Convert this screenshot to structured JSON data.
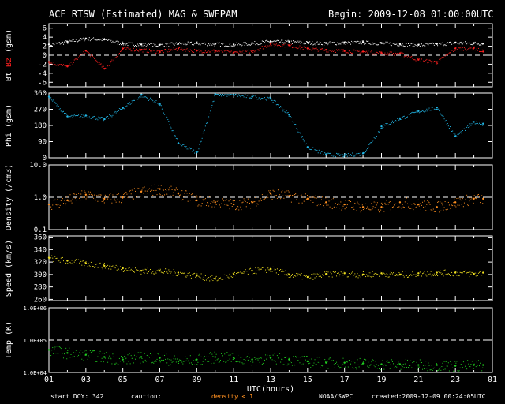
{
  "header": {
    "title": "ACE RTSW (Estimated) MAG & SWEPAM",
    "begin": "Begin: 2009-12-08 01:00:00UTC"
  },
  "footer": {
    "start_doy": "start DOY: 342",
    "caution_label": "caution:",
    "caution_value": "density < 1",
    "source": "NOAA/SWPC",
    "created": "created:2009-12-09 00:24:05UTC"
  },
  "colors": {
    "bt": "#ffffff",
    "bz": "#ff2020",
    "phi": "#22b8e8",
    "density": "#ff9020",
    "speed": "#f0e020",
    "temp": "#20d020",
    "caution": "#ff9020",
    "frame": "#ffffff",
    "background": "#000000"
  },
  "chart_data": [
    {
      "type": "line",
      "ylabel_parts": [
        {
          "text": "Bt",
          "color": "#ffffff"
        },
        {
          "text": "Bz",
          "color": "#ff2020"
        },
        {
          "text": "(gsm)",
          "color": "#ffffff"
        }
      ],
      "ylim": [
        -7,
        7
      ],
      "yticks": [
        6,
        4,
        2,
        0,
        -2,
        -4,
        -6
      ],
      "yticklabels": [
        "6",
        "4",
        "2",
        "0",
        "-2",
        "-4",
        "-6"
      ],
      "refline": 0,
      "x_hours": [
        0,
        1,
        2,
        3,
        4,
        5,
        6,
        7,
        8,
        9,
        10,
        11,
        12,
        13,
        14,
        15,
        16,
        17,
        18,
        19,
        20,
        21,
        22,
        23,
        23.5
      ],
      "series": [
        {
          "name": "Bt",
          "values": [
            2.4,
            3.0,
            3.7,
            3.5,
            2.6,
            2.4,
            2.3,
            2.6,
            2.7,
            2.5,
            2.4,
            2.7,
            3.1,
            3.0,
            2.8,
            2.7,
            2.8,
            2.9,
            2.7,
            2.5,
            2.3,
            2.5,
            2.8,
            2.7,
            2.6
          ]
        },
        {
          "name": "Bz",
          "values": [
            -1.5,
            -2.5,
            1.0,
            -3.0,
            1.5,
            1.2,
            0.8,
            1.5,
            1.0,
            1.0,
            0.6,
            1.0,
            2.5,
            2.2,
            1.5,
            1.2,
            1.0,
            0.8,
            0.5,
            0.4,
            -1.0,
            -1.5,
            1.5,
            1.6,
            0.8
          ]
        }
      ]
    },
    {
      "type": "scatter",
      "ylabel": "Phi (gsm)",
      "ylim": [
        0,
        360
      ],
      "yticks": [
        360,
        270,
        180,
        90,
        0
      ],
      "yticklabels": [
        "360",
        "270",
        "180",
        "90",
        "0"
      ],
      "x_hours": [
        0,
        1,
        2,
        3,
        4,
        5,
        6,
        7,
        8,
        9,
        10,
        11,
        12,
        13,
        14,
        15,
        16,
        17,
        18,
        19,
        20,
        21,
        22,
        23,
        23.5
      ],
      "series": [
        {
          "name": "Phi",
          "values": [
            340,
            230,
            235,
            215,
            280,
            350,
            300,
            80,
            30,
            355,
            350,
            340,
            330,
            240,
            60,
            20,
            15,
            25,
            175,
            220,
            260,
            280,
            120,
            200,
            190
          ]
        }
      ]
    },
    {
      "type": "scatter",
      "ylabel": "Density (/cm3)",
      "yscale": "log",
      "ylim": [
        0.1,
        10.0
      ],
      "yticks": [
        10.0,
        1.0,
        0.1
      ],
      "yticklabels": [
        "10.0",
        "1.0",
        "0.1"
      ],
      "refline": 1.0,
      "x_hours": [
        0,
        1,
        2,
        3,
        4,
        5,
        6,
        7,
        8,
        9,
        10,
        11,
        12,
        13,
        14,
        15,
        16,
        17,
        18,
        19,
        20,
        21,
        22,
        23,
        23.5
      ],
      "series": [
        {
          "name": "Density",
          "values": [
            0.6,
            0.8,
            1.2,
            0.9,
            1.0,
            1.5,
            1.8,
            1.3,
            0.8,
            0.7,
            0.6,
            0.7,
            1.3,
            1.1,
            0.9,
            0.7,
            0.6,
            0.5,
            0.5,
            0.7,
            0.6,
            0.5,
            0.7,
            0.9,
            0.9
          ]
        }
      ]
    },
    {
      "type": "scatter",
      "ylabel": "Speed (km/s)",
      "ylim": [
        258,
        362
      ],
      "yticks": [
        360,
        340,
        320,
        300,
        280,
        260
      ],
      "yticklabels": [
        "360",
        "340",
        "320",
        "300",
        "280",
        "260"
      ],
      "x_hours": [
        0,
        1,
        2,
        3,
        4,
        5,
        6,
        7,
        8,
        9,
        10,
        11,
        12,
        13,
        14,
        15,
        16,
        17,
        18,
        19,
        20,
        21,
        22,
        23,
        23.5
      ],
      "series": [
        {
          "name": "Speed",
          "values": [
            327,
            322,
            318,
            314,
            310,
            306,
            306,
            303,
            298,
            293,
            300,
            306,
            309,
            300,
            296,
            301,
            302,
            300,
            302,
            300,
            302,
            303,
            303,
            301,
            303
          ]
        }
      ]
    },
    {
      "type": "scatter",
      "ylabel": "Temp (K)",
      "yscale": "log",
      "ylim": [
        10000,
        1000000
      ],
      "yticks": [
        1000000,
        100000,
        10000
      ],
      "yticklabels": [
        "1.0E+06",
        "1.0E+05",
        "1.0E+04"
      ],
      "refline": 100000,
      "xlabel": "UTC(hours)",
      "xticklabels": [
        "01",
        "03",
        "05",
        "07",
        "09",
        "11",
        "13",
        "15",
        "17",
        "19",
        "21",
        "23",
        "01"
      ],
      "x_hours": [
        0,
        1,
        2,
        3,
        4,
        5,
        6,
        7,
        8,
        9,
        10,
        11,
        12,
        13,
        14,
        15,
        16,
        17,
        18,
        19,
        20,
        21,
        22,
        23,
        23.5
      ],
      "series": [
        {
          "name": "Temp",
          "values": [
            50000,
            40000,
            35000,
            30000,
            25000,
            30000,
            28000,
            22000,
            25000,
            30000,
            28000,
            25000,
            28000,
            25000,
            22000,
            20000,
            20000,
            19000,
            18000,
            18000,
            17000,
            17000,
            16000,
            17000,
            17000
          ]
        }
      ]
    }
  ]
}
